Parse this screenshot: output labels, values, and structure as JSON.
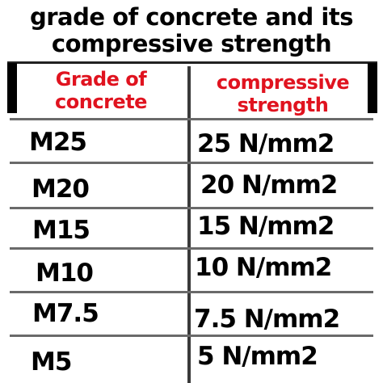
{
  "title": {
    "line1": "grade of concrete and its",
    "line2": "compressive strength"
  },
  "table": {
    "headers": {
      "grade_line1": "Grade of",
      "grade_line2": "concrete",
      "strength_line1": "compressive",
      "strength_line2": "strength"
    },
    "rows": [
      {
        "grade": "M25",
        "strength": "25 N/mm2"
      },
      {
        "grade": "M20",
        "strength": "20 N/mm2"
      },
      {
        "grade": "M15",
        "strength": "15 N/mm2"
      },
      {
        "grade": "M10",
        "strength": "10 N/mm2"
      },
      {
        "grade": "M7.5",
        "strength": "7.5 N/mm2"
      },
      {
        "grade": "M5",
        "strength": "5 N/mm2"
      }
    ]
  },
  "colors": {
    "header_text": "#e0131f",
    "body_text": "#000000",
    "background": "#ffffff"
  }
}
